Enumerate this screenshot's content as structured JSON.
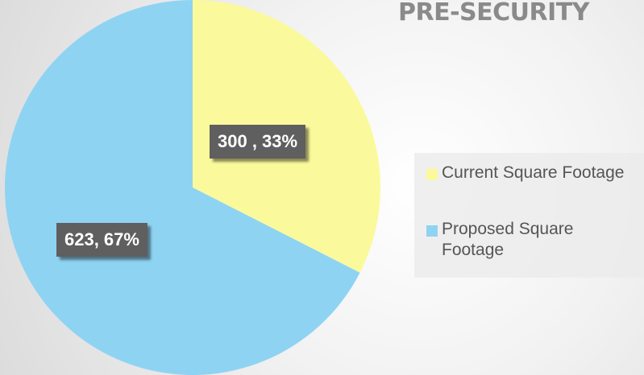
{
  "chart_data": {
    "type": "pie",
    "title": "PRE-SECURITY",
    "categories": [
      "Current Square Footage",
      "Proposed Square Footage"
    ],
    "values": [
      300,
      623
    ],
    "value_labels": [
      "300 , 33%",
      "623, 67%"
    ],
    "colors": [
      "#fafa9c",
      "#8fd3f3"
    ],
    "legend": "right"
  }
}
